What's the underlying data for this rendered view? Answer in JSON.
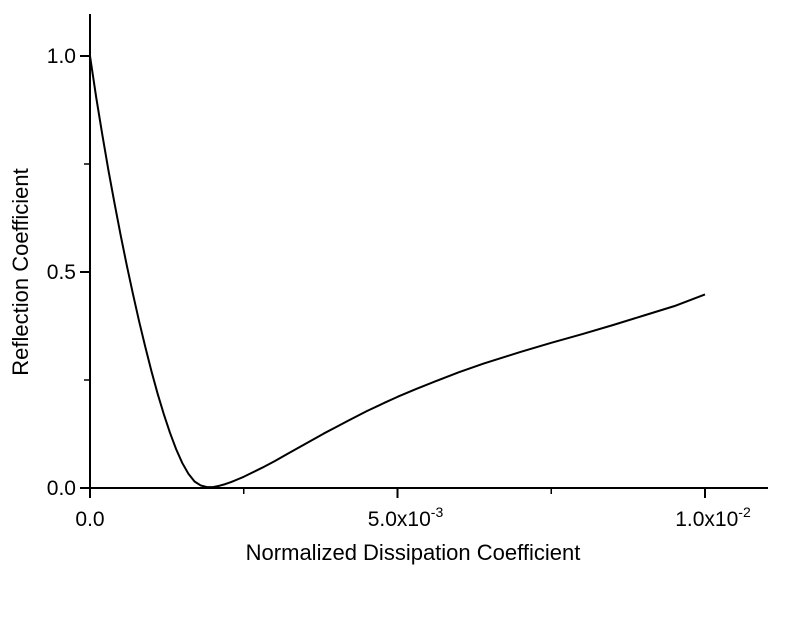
{
  "chart_data": {
    "type": "line",
    "title": "",
    "xlabel": "Normalized Dissipation Coefficient",
    "ylabel": "Reflection Coefficient",
    "xlim": [
      0,
      0.011
    ],
    "ylim": [
      0,
      1.1
    ],
    "grid": false,
    "legend": "none",
    "x_ticks": [
      {
        "value": 0.0,
        "mantissa": "0.0",
        "exponent": ""
      },
      {
        "value": 0.005,
        "mantissa": "5.0x10",
        "exponent": "-3"
      },
      {
        "value": 0.01,
        "mantissa": "1.0x10",
        "exponent": "-2"
      }
    ],
    "x_minor_ticks": [
      0.0025,
      0.0075
    ],
    "y_ticks": [
      {
        "value": 0.0,
        "label": "0.0"
      },
      {
        "value": 0.5,
        "label": "0.5"
      },
      {
        "value": 1.0,
        "label": "1.0"
      }
    ],
    "y_minor_ticks": [
      0.25,
      0.75
    ],
    "series": [
      {
        "color": "#000000",
        "x": [
          0,
          0.0001,
          0.0002,
          0.0003,
          0.0004,
          0.0005,
          0.0006,
          0.0007,
          0.0008,
          0.0009,
          0.001,
          0.0011,
          0.0012,
          0.0013,
          0.0014,
          0.0015,
          0.0016,
          0.0017,
          0.0018,
          0.0019,
          0.002,
          0.0021,
          0.0022,
          0.0023,
          0.0024,
          0.0025,
          0.0026,
          0.0028,
          0.003,
          0.0032,
          0.0034,
          0.0036,
          0.0038,
          0.004,
          0.0042,
          0.0045,
          0.0048,
          0.005,
          0.0053,
          0.0056,
          0.006,
          0.0064,
          0.0068,
          0.007,
          0.0075,
          0.008,
          0.0085,
          0.009,
          0.0095,
          0.01
        ],
        "y": [
          1.0,
          0.905,
          0.818,
          0.735,
          0.658,
          0.584,
          0.514,
          0.448,
          0.385,
          0.326,
          0.27,
          0.218,
          0.171,
          0.128,
          0.09,
          0.058,
          0.033,
          0.015,
          0.006,
          0.002,
          0.002,
          0.005,
          0.009,
          0.014,
          0.02,
          0.026,
          0.033,
          0.047,
          0.062,
          0.078,
          0.094,
          0.11,
          0.126,
          0.141,
          0.156,
          0.178,
          0.198,
          0.211,
          0.229,
          0.246,
          0.268,
          0.288,
          0.306,
          0.315,
          0.336,
          0.356,
          0.377,
          0.399,
          0.421,
          0.448
        ]
      }
    ]
  }
}
